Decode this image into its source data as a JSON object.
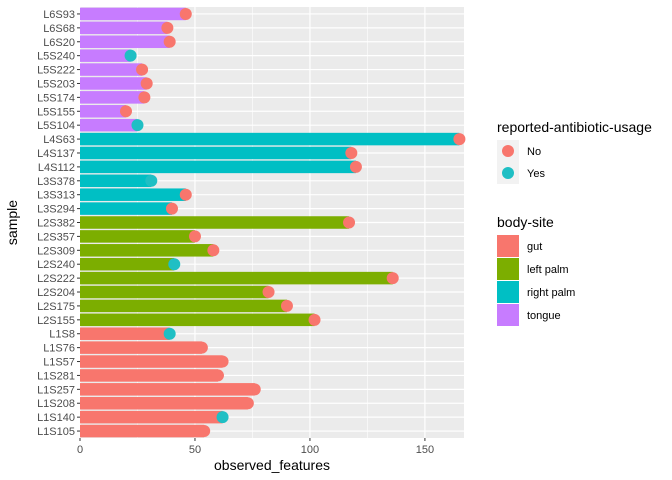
{
  "chart_data": {
    "type": "bar",
    "orientation": "horizontal",
    "xlabel": "observed_features",
    "ylabel": "sample",
    "xlim": [
      0,
      167
    ],
    "xticks": [
      0,
      50,
      100,
      150
    ],
    "grid": true,
    "legend_placement": "right",
    "categories": [
      "L6S93",
      "L6S68",
      "L6S20",
      "L5S240",
      "L5S222",
      "L5S203",
      "L5S174",
      "L5S155",
      "L5S104",
      "L4S63",
      "L4S137",
      "L4S112",
      "L3S378",
      "L3S313",
      "L3S294",
      "L2S382",
      "L2S357",
      "L2S309",
      "L2S240",
      "L2S222",
      "L2S204",
      "L2S175",
      "L2S155",
      "L1S8",
      "L1S76",
      "L1S57",
      "L1S281",
      "L1S257",
      "L1S208",
      "L1S140",
      "L1S105"
    ],
    "values": [
      46,
      38,
      39,
      22,
      27,
      29,
      28,
      20,
      25,
      165,
      118,
      120,
      31,
      46,
      40,
      117,
      50,
      58,
      41,
      136,
      82,
      90,
      102,
      39,
      53,
      62,
      60,
      76,
      73,
      62,
      54
    ],
    "body_site": [
      "tongue",
      "tongue",
      "tongue",
      "tongue",
      "tongue",
      "tongue",
      "tongue",
      "tongue",
      "tongue",
      "right palm",
      "right palm",
      "right palm",
      "right palm",
      "right palm",
      "right palm",
      "left palm",
      "left palm",
      "left palm",
      "left palm",
      "left palm",
      "left palm",
      "left palm",
      "left palm",
      "gut",
      "gut",
      "gut",
      "gut",
      "gut",
      "gut",
      "gut",
      "gut"
    ],
    "antibiotic_usage": [
      "No",
      "No",
      "No",
      "Yes",
      "No",
      "No",
      "No",
      "No",
      "Yes",
      "No",
      "No",
      "No",
      "Yes",
      "No",
      "No",
      "No",
      "No",
      "No",
      "Yes",
      "No",
      "No",
      "No",
      "No",
      "Yes",
      "No",
      "No",
      "No",
      "No",
      "No",
      "Yes",
      "No"
    ],
    "legends": [
      {
        "title": "reported-antibiotic-usage",
        "entries": [
          {
            "label": "No",
            "color": "#F8766D"
          },
          {
            "label": "Yes",
            "color": "#1FBFC4"
          }
        ]
      },
      {
        "title": "body-site",
        "entries": [
          {
            "label": "gut",
            "color": "#F8766D"
          },
          {
            "label": "left palm",
            "color": "#7CAE00"
          },
          {
            "label": "right palm",
            "color": "#00BFC4"
          },
          {
            "label": "tongue",
            "color": "#C77CFF"
          }
        ]
      }
    ]
  }
}
